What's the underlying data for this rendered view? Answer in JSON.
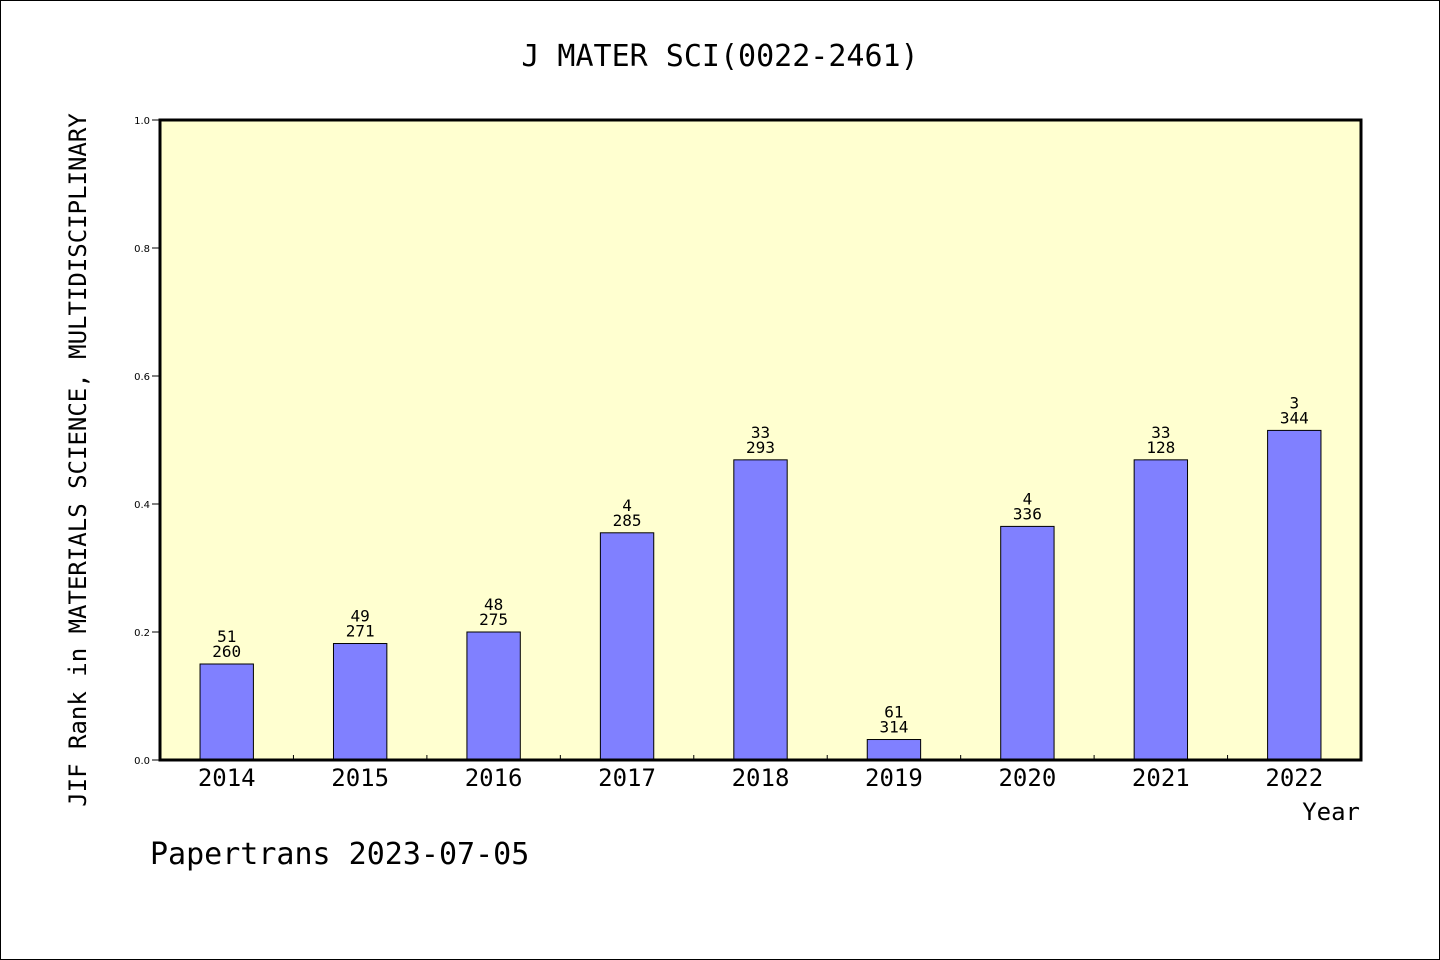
{
  "chart_data": {
    "type": "bar",
    "title": "J MATER SCI(0022-2461)",
    "ylabel": "JIF Rank in MATERIALS SCIENCE, MULTIDISCIPLINARY",
    "xlabel": "Year",
    "ylim": [
      0,
      1.0
    ],
    "yticks": [
      "0.0",
      "0.2",
      "0.4",
      "0.6",
      "0.8",
      "1.0"
    ],
    "categories": [
      "2014",
      "2015",
      "2016",
      "2017",
      "2018",
      "2019",
      "2020",
      "2021",
      "2022"
    ],
    "values": [
      0.15,
      0.182,
      0.2,
      0.355,
      0.469,
      0.032,
      0.365,
      0.469,
      0.515
    ],
    "rank_labels": [
      "51",
      "49",
      "48",
      "4",
      "33",
      "61",
      "4",
      "33",
      "3"
    ],
    "total_labels": [
      "260",
      "271",
      "275",
      "285",
      "293",
      "314",
      "336",
      "128",
      "344"
    ],
    "colors": {
      "bar": "#8080ff",
      "plot_background": "#ffffd0",
      "border": "#000000"
    },
    "grid": false,
    "legend": "none"
  },
  "footer": {
    "credit": "Papertrans 2023-07-05"
  }
}
